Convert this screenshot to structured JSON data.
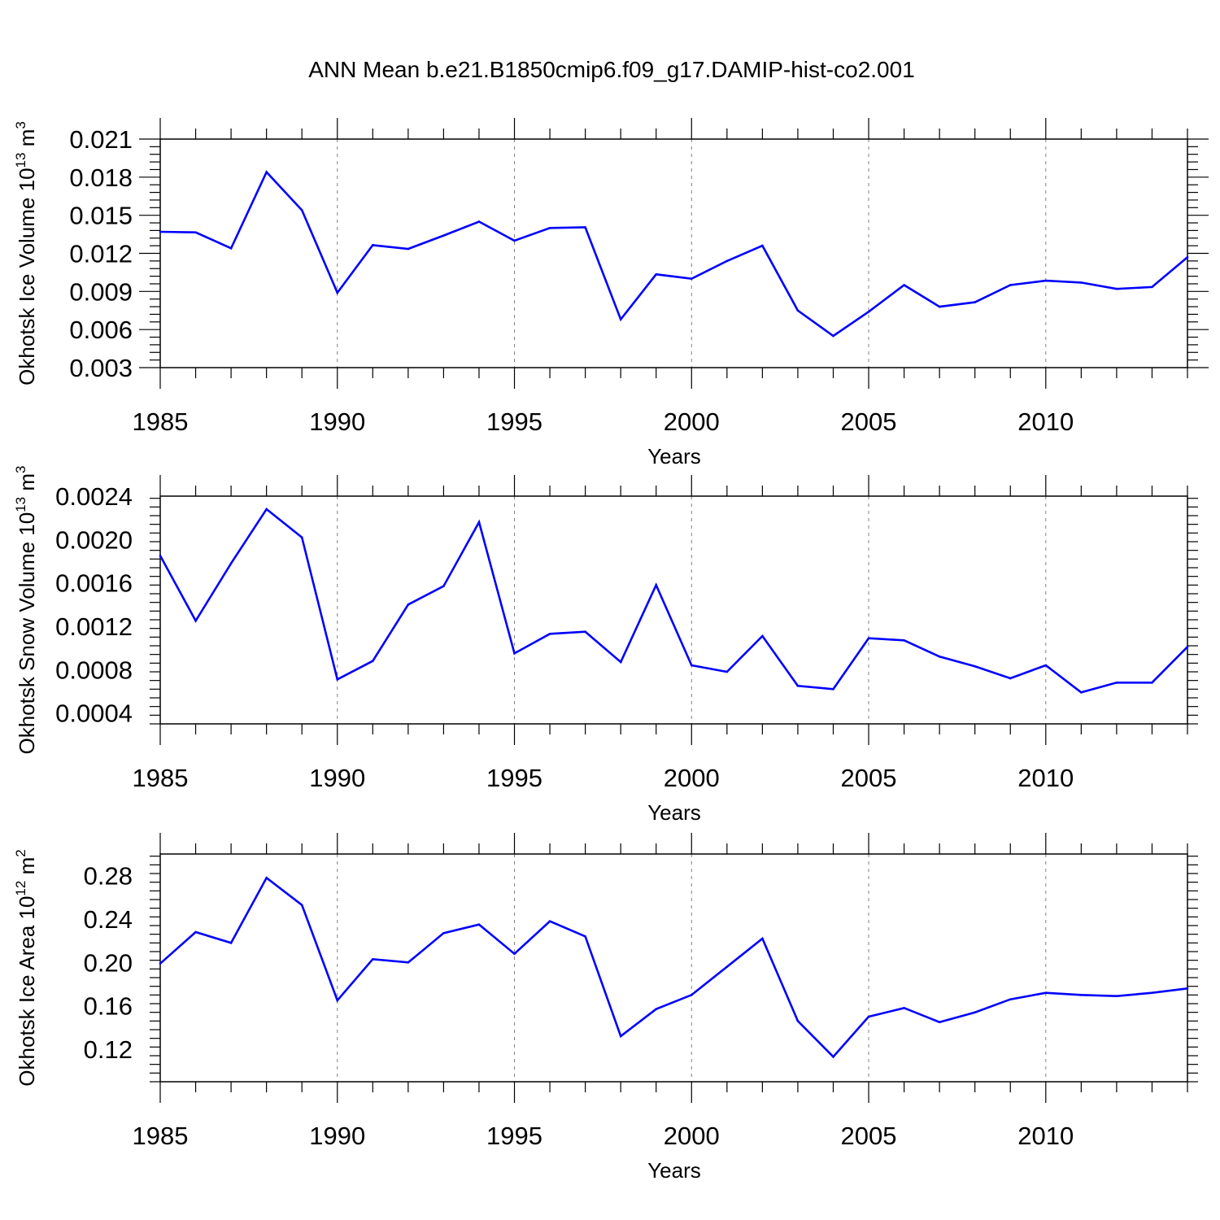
{
  "title": "ANN Mean b.e21.B1850cmip6.f09_g17.DAMIP-hist-co2.001",
  "colors": {
    "line": "#0000ff",
    "axis": "#000000",
    "grid": "#808080",
    "background": "#ffffff"
  },
  "chart_data": [
    {
      "type": "line",
      "ylabel_main": "Okhotsk Ice Volume 10",
      "ylabel_exp": "13",
      "ylabel_unit": "m",
      "ylabel_unit_exp": "3",
      "xlabel": "Years",
      "xlim": [
        1985,
        2014
      ],
      "ylim": [
        0.003,
        0.021
      ],
      "yticks": [
        0.003,
        0.006,
        0.009,
        0.012,
        0.015,
        0.018,
        0.021
      ],
      "ytick_labels": [
        "0.003",
        "0.006",
        "0.009",
        "0.012",
        "0.015",
        "0.018",
        "0.021"
      ],
      "xticks": [
        1985,
        1990,
        1995,
        2000,
        2005,
        2010
      ],
      "xtick_labels": [
        "1985",
        "1990",
        "1995",
        "2000",
        "2005",
        "2010"
      ],
      "x": [
        1985,
        1986,
        1987,
        1988,
        1989,
        1990,
        1991,
        1992,
        1993,
        1994,
        1995,
        1996,
        1997,
        1998,
        1999,
        2000,
        2001,
        2002,
        2003,
        2004,
        2005,
        2006,
        2007,
        2008,
        2009,
        2010,
        2011,
        2012,
        2013,
        2014
      ],
      "values": [
        0.0137,
        0.01365,
        0.0124,
        0.0184,
        0.0154,
        0.0089,
        0.01265,
        0.01235,
        0.0134,
        0.0145,
        0.013,
        0.014,
        0.01405,
        0.0068,
        0.01035,
        0.01,
        0.0114,
        0.0126,
        0.0075,
        0.0055,
        0.0074,
        0.0095,
        0.0078,
        0.00815,
        0.0095,
        0.00985,
        0.0097,
        0.0092,
        0.00935,
        0.0117
      ],
      "grid": "vertical dashed at major x ticks"
    },
    {
      "type": "line",
      "ylabel_main": "Okhotsk Snow Volume 10",
      "ylabel_exp": "13",
      "ylabel_unit": "m",
      "ylabel_unit_exp": "3",
      "xlabel": "Years",
      "xlim": [
        1985,
        2014
      ],
      "ylim": [
        0.0003,
        0.0024
      ],
      "yticks": [
        0.0004,
        0.0008,
        0.0012,
        0.0016,
        0.002,
        0.0024
      ],
      "ytick_labels": [
        "0.0004",
        "0.0008",
        "0.0012",
        "0.0016",
        "0.0020",
        "0.0024"
      ],
      "xticks": [
        1985,
        1990,
        1995,
        2000,
        2005,
        2010
      ],
      "xtick_labels": [
        "1985",
        "1990",
        "1995",
        "2000",
        "2005",
        "2010"
      ],
      "x": [
        1985,
        1986,
        1987,
        1988,
        1989,
        1990,
        1991,
        1992,
        1993,
        1994,
        1995,
        1996,
        1997,
        1998,
        1999,
        2000,
        2001,
        2002,
        2003,
        2004,
        2005,
        2006,
        2007,
        2008,
        2009,
        2010,
        2011,
        2012,
        2013,
        2014
      ],
      "values": [
        0.00185,
        0.00125,
        0.00178,
        0.00228,
        0.00202,
        0.00071,
        0.00088,
        0.0014,
        0.00157,
        0.00216,
        0.00095,
        0.00113,
        0.00115,
        0.00087,
        0.00158,
        0.00084,
        0.00078,
        0.00111,
        0.00065,
        0.00062,
        0.00109,
        0.00107,
        0.00092,
        0.00083,
        0.00072,
        0.00084,
        0.00059,
        0.00068,
        0.00068,
        0.00101
      ],
      "grid": "vertical dashed at major x ticks"
    },
    {
      "type": "line",
      "ylabel_main": "Okhotsk Ice Area 10",
      "ylabel_exp": "12",
      "ylabel_unit": "m",
      "ylabel_unit_exp": "2",
      "xlabel": "Years",
      "xlim": [
        1985,
        2014
      ],
      "ylim": [
        0.09,
        0.3
      ],
      "yticks": [
        0.12,
        0.16,
        0.2,
        0.24,
        0.28
      ],
      "ytick_labels": [
        "0.12",
        "0.16",
        "0.20",
        "0.24",
        "0.28"
      ],
      "xticks": [
        1985,
        1990,
        1995,
        2000,
        2005,
        2010
      ],
      "xtick_labels": [
        "1985",
        "1990",
        "1995",
        "2000",
        "2005",
        "2010"
      ],
      "x": [
        1985,
        1986,
        1987,
        1988,
        1989,
        1990,
        1991,
        1992,
        1993,
        1994,
        1995,
        1996,
        1997,
        1998,
        1999,
        2000,
        2001,
        2002,
        2003,
        2004,
        2005,
        2006,
        2007,
        2008,
        2009,
        2010,
        2011,
        2012,
        2013,
        2014
      ],
      "values": [
        0.199,
        0.228,
        0.218,
        0.278,
        0.253,
        0.165,
        0.203,
        0.2,
        0.227,
        0.235,
        0.208,
        0.238,
        0.224,
        0.132,
        0.157,
        0.17,
        0.196,
        0.222,
        0.146,
        0.113,
        0.15,
        0.158,
        0.145,
        0.154,
        0.166,
        0.172,
        0.17,
        0.169,
        0.172,
        0.176
      ],
      "grid": "vertical dashed at major x ticks"
    }
  ]
}
